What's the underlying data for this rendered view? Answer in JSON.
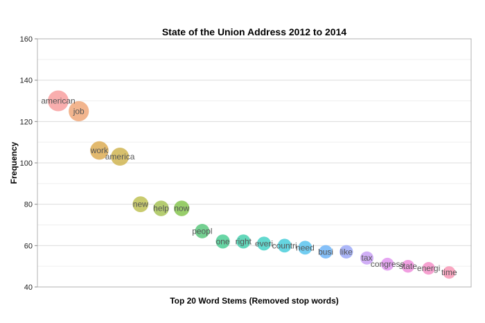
{
  "chart_data": {
    "type": "scatter",
    "title": "State of the Union Address 2012 to 2014",
    "xlabel": "Top 20 Word Stems (Removed stop words)",
    "ylabel": "Frequency",
    "ylim": [
      40,
      160
    ],
    "yticks": [
      "40",
      "60",
      "80",
      "100",
      "120",
      "140",
      "160"
    ],
    "grid": true,
    "points": [
      {
        "label": "american",
        "y": 130,
        "color": "#F8A0A0"
      },
      {
        "label": "job",
        "y": 125,
        "color": "#F0A87A"
      },
      {
        "label": "work",
        "y": 106,
        "color": "#DDAD55"
      },
      {
        "label": "america",
        "y": 103,
        "color": "#D0B552"
      },
      {
        "label": "new",
        "y": 80,
        "color": "#BFC256"
      },
      {
        "label": "help",
        "y": 78,
        "color": "#A8C458"
      },
      {
        "label": "now",
        "y": 78,
        "color": "#86C650"
      },
      {
        "label": "peopl",
        "y": 67,
        "color": "#5CC87E"
      },
      {
        "label": "one",
        "y": 62,
        "color": "#4ECF95"
      },
      {
        "label": "right",
        "y": 62,
        "color": "#48D0AE"
      },
      {
        "label": "everi",
        "y": 61,
        "color": "#48D2C7"
      },
      {
        "label": "countri",
        "y": 60,
        "color": "#4ACEDA"
      },
      {
        "label": "need",
        "y": 59,
        "color": "#5AC4EE"
      },
      {
        "label": "busi",
        "y": 57,
        "color": "#70B5F8"
      },
      {
        "label": "like",
        "y": 57,
        "color": "#9EAAF8"
      },
      {
        "label": "tax",
        "y": 54,
        "color": "#C8A0F5"
      },
      {
        "label": "congress",
        "y": 51,
        "color": "#E096F0"
      },
      {
        "label": "state",
        "y": 50,
        "color": "#EE8EDC"
      },
      {
        "label": "energi",
        "y": 49,
        "color": "#F590C8"
      },
      {
        "label": "time",
        "y": 47,
        "color": "#F898B6"
      }
    ]
  }
}
